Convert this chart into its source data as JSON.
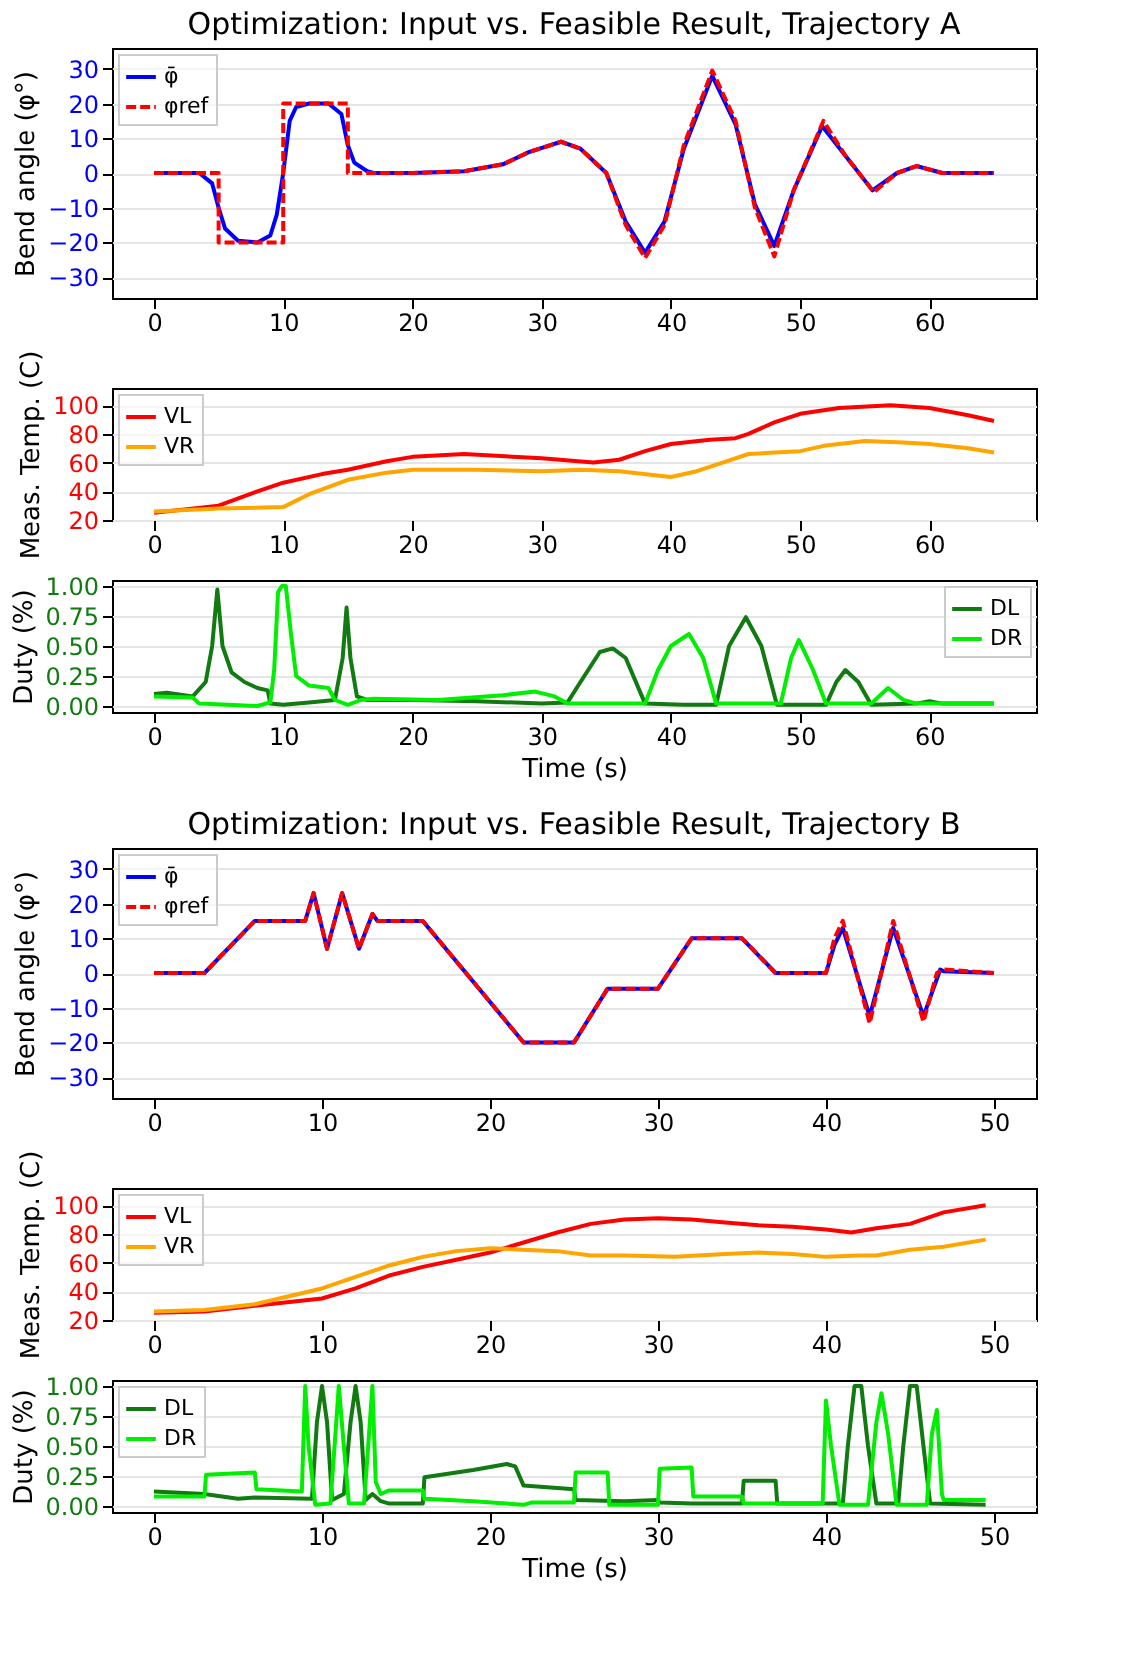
{
  "chart_data": [
    {
      "type": "line",
      "title": "Optimization: Input vs. Feasible Result, Trajectory A",
      "ylabel": "Bend angle (φ°)",
      "xlim": [
        -3.25,
        68.25
      ],
      "xticks": [
        0,
        10,
        20,
        30,
        40,
        50,
        60
      ],
      "ylim": [
        -36,
        36
      ],
      "yticks": [
        -30,
        -20,
        -10,
        0,
        10,
        20,
        30
      ],
      "grid": "y",
      "legend": "top left",
      "series": [
        {
          "name": "φ̄",
          "color": "#0000ff",
          "line_style": "solid",
          "x": [
            0,
            3.5,
            4.5,
            5,
            5.5,
            6.5,
            8,
            9,
            9.5,
            10,
            10.5,
            11,
            12,
            13.5,
            14.5,
            15,
            15.5,
            16.5,
            17,
            20,
            24,
            27,
            29,
            31.5,
            33,
            35,
            36.5,
            38,
            39.5,
            41,
            43.2,
            45,
            46.5,
            48,
            49.5,
            51.7,
            53.5,
            55.6,
            57.5,
            59,
            61,
            65
          ],
          "values": [
            0,
            0,
            -3,
            -10,
            -16,
            -19.5,
            -20,
            -18,
            -12,
            0,
            15,
            19,
            20,
            20,
            17,
            8,
            3,
            0.5,
            0,
            0,
            0.5,
            2.5,
            6,
            9,
            7,
            0,
            -14,
            -23,
            -14,
            7,
            28,
            14,
            -9,
            -21,
            -5,
            13.5,
            5,
            -5,
            0,
            2,
            0,
            0
          ]
        },
        {
          "name": "φref",
          "color": "#ff0000",
          "line_style": "dashed",
          "x": [
            0,
            5,
            5,
            10,
            10,
            15,
            15,
            20,
            24,
            27,
            29,
            31.5,
            33,
            35,
            36.5,
            38,
            39.5,
            41,
            43.2,
            45,
            46.5,
            48,
            49.5,
            51.8,
            53.5,
            55.7,
            57.5,
            59,
            61,
            65
          ],
          "values": [
            0,
            0,
            -20,
            -20,
            20,
            20,
            0,
            0,
            0.5,
            2.5,
            6,
            9,
            7,
            0,
            -15,
            -24.5,
            -15,
            8,
            29.5,
            15,
            -10,
            -24,
            -5,
            15,
            5,
            -5.5,
            0,
            2,
            0,
            0
          ]
        }
      ]
    },
    {
      "type": "line",
      "ylabel": "Meas. Temp. (C)",
      "xlim": [
        -3.25,
        68.25
      ],
      "xticks": [
        0,
        10,
        20,
        30,
        40,
        50,
        60
      ],
      "ylim": [
        20,
        112
      ],
      "yticks": [
        20,
        40,
        60,
        80,
        100
      ],
      "grid": "y",
      "legend": "top left",
      "series": [
        {
          "name": "VL",
          "color": "#ff0000",
          "line_style": "solid",
          "x": [
            0,
            5,
            8,
            10,
            13,
            15,
            18,
            20,
            24,
            30,
            34,
            36,
            38,
            40,
            43,
            45,
            46,
            48,
            50,
            53,
            57,
            60,
            63,
            65
          ],
          "values": [
            25,
            30,
            40,
            46,
            52,
            55,
            61,
            64,
            66,
            63,
            60,
            62,
            68,
            73,
            76,
            77,
            80,
            88,
            94,
            98,
            100,
            98,
            93,
            89
          ]
        },
        {
          "name": "VR",
          "color": "#ffa500",
          "line_style": "solid",
          "x": [
            0,
            5,
            10,
            12,
            15,
            18,
            20,
            25,
            30,
            33,
            36,
            40,
            42,
            44,
            46,
            48,
            50,
            52,
            55,
            58,
            60,
            63,
            65
          ],
          "values": [
            26,
            28,
            29,
            38,
            48,
            53,
            55,
            55,
            54,
            55,
            54,
            50,
            54,
            60,
            66,
            67,
            68,
            72,
            75,
            74,
            73,
            70,
            67
          ]
        }
      ]
    },
    {
      "type": "line",
      "ylabel": "Duty (%)",
      "xlabel": "Time (s)",
      "xlim": [
        -3.25,
        68.25
      ],
      "xticks": [
        0,
        10,
        20,
        30,
        40,
        50,
        60
      ],
      "ylim": [
        -0.05,
        1.05
      ],
      "yticks": [
        {
          "value": 0,
          "label": "0.00"
        },
        0.25,
        {
          "value": 0.5,
          "label": "0.50"
        },
        0.75,
        {
          "value": 1,
          "label": "1.00"
        }
      ],
      "grid": "y",
      "legend": "top right",
      "series": [
        {
          "name": "DL",
          "color": "#117a11",
          "line_style": "solid",
          "x": [
            0,
            1,
            3,
            4,
            4.5,
            4.9,
            5.3,
            6,
            7,
            8,
            8.8,
            9,
            10,
            12,
            14,
            14.6,
            14.9,
            15.2,
            15.7,
            16.5,
            20,
            25,
            30,
            32,
            33,
            34.5,
            35.5,
            36.5,
            38,
            41,
            43.5,
            44.5,
            45.8,
            47,
            48.2,
            52,
            52.8,
            53.5,
            54.5,
            55.5,
            59,
            60,
            61,
            65
          ],
          "values": [
            0.1,
            0.11,
            0.08,
            0.2,
            0.5,
            0.97,
            0.5,
            0.28,
            0.2,
            0.15,
            0.13,
            0.02,
            0.01,
            0.03,
            0.05,
            0.4,
            0.82,
            0.4,
            0.08,
            0.05,
            0.05,
            0.04,
            0.02,
            0.03,
            0.2,
            0.45,
            0.48,
            0.4,
            0.02,
            0.01,
            0.01,
            0.5,
            0.74,
            0.5,
            0.01,
            0.01,
            0.2,
            0.3,
            0.2,
            0.01,
            0.02,
            0.04,
            0.02,
            0.02
          ]
        },
        {
          "name": "DR",
          "color": "#00ee00",
          "line_style": "solid",
          "x": [
            0,
            3,
            3.5,
            8,
            9,
            9.3,
            9.6,
            9.9,
            10.2,
            10.6,
            11,
            12,
            13.5,
            14,
            15,
            16,
            17,
            22,
            27,
            29.5,
            31,
            32,
            38,
            39,
            40,
            41.4,
            42.5,
            43.5,
            48.5,
            49.3,
            49.9,
            51,
            52,
            55.5,
            56.8,
            58,
            59,
            65
          ],
          "values": [
            0.08,
            0.07,
            0.02,
            0,
            0.03,
            0.3,
            0.95,
            1,
            1,
            0.6,
            0.25,
            0.17,
            0.15,
            0.05,
            0.01,
            0.05,
            0.06,
            0.05,
            0.09,
            0.12,
            0.08,
            0.02,
            0.02,
            0.3,
            0.5,
            0.6,
            0.4,
            0.02,
            0.02,
            0.4,
            0.55,
            0.3,
            0.02,
            0.02,
            0.15,
            0.05,
            0.02,
            0.02
          ]
        }
      ]
    },
    {
      "type": "line",
      "title": "Optimization: Input vs. Feasible Result, Trajectory B",
      "ylabel": "Bend angle (φ°)",
      "xlim": [
        -2.5,
        52.5
      ],
      "xticks": [
        0,
        10,
        20,
        30,
        40,
        50
      ],
      "ylim": [
        -36,
        36
      ],
      "yticks": [
        -30,
        -20,
        -10,
        0,
        10,
        20,
        30
      ],
      "grid": "y",
      "legend": "top left",
      "series": [
        {
          "name": "φ̄",
          "color": "#0000ff",
          "line_style": "solid",
          "x": [
            0,
            3,
            6,
            9,
            9.5,
            10.3,
            11.2,
            12.2,
            13,
            13.3,
            16,
            22,
            25,
            27,
            30,
            32,
            35,
            37,
            40,
            40.5,
            41,
            42.6,
            44,
            45.8,
            46.8,
            47,
            50
          ],
          "values": [
            0,
            0,
            15,
            15,
            23,
            7,
            23,
            7,
            17,
            15,
            15,
            -20,
            -20,
            -4.5,
            -4.5,
            10,
            10,
            0,
            0,
            8,
            13,
            -12.5,
            13,
            -12.5,
            1,
            0.5,
            0
          ]
        },
        {
          "name": "φref",
          "color": "#ff0000",
          "line_style": "dashed",
          "x": [
            0,
            3,
            6,
            9,
            9.5,
            10.3,
            11.2,
            12.2,
            13,
            13.3,
            16,
            22,
            25,
            27,
            30,
            32,
            35,
            37,
            40,
            40.5,
            41,
            42.6,
            44,
            45.8,
            46.6,
            47,
            50
          ],
          "values": [
            0,
            0,
            15,
            15,
            23,
            7,
            23,
            7,
            17,
            15,
            15,
            -20,
            -20,
            -4.5,
            -4.5,
            10,
            10,
            0,
            0,
            10,
            15,
            -14.5,
            15,
            -14,
            0,
            1,
            0
          ]
        }
      ]
    },
    {
      "type": "line",
      "ylabel": "Meas. Temp. (C)",
      "xlim": [
        -2.5,
        52.5
      ],
      "xticks": [
        0,
        10,
        20,
        30,
        40,
        50
      ],
      "ylim": [
        20,
        112
      ],
      "yticks": [
        20,
        40,
        60,
        80,
        100
      ],
      "grid": "y",
      "legend": "top left",
      "series": [
        {
          "name": "VL",
          "color": "#ff0000",
          "line_style": "solid",
          "x": [
            0,
            3,
            6,
            10,
            12,
            14,
            16,
            18,
            20,
            22,
            24,
            26,
            28,
            30,
            32,
            34,
            36,
            38,
            40,
            41.5,
            43,
            45,
            47,
            49.5
          ],
          "values": [
            25,
            26,
            30,
            35,
            42,
            51,
            57,
            62,
            67,
            74,
            81,
            87,
            90,
            91,
            90,
            88,
            86,
            85,
            83,
            81,
            84,
            87,
            95,
            100
          ]
        },
        {
          "name": "VR",
          "color": "#ffa500",
          "line_style": "solid",
          "x": [
            0,
            3,
            6,
            10,
            12,
            14,
            16,
            18,
            20,
            22,
            24,
            26,
            28,
            31,
            34,
            36,
            38,
            40,
            42,
            43,
            45,
            47,
            49.5
          ],
          "values": [
            26,
            27,
            31,
            42,
            50,
            58,
            64,
            68,
            70,
            69,
            68,
            65,
            65,
            64,
            66,
            67,
            66,
            64,
            65,
            65,
            69,
            71,
            76
          ]
        }
      ]
    },
    {
      "type": "line",
      "ylabel": "Duty (%)",
      "xlabel": "Time (s)",
      "xlim": [
        -2.5,
        52.5
      ],
      "xticks": [
        0,
        10,
        20,
        30,
        40,
        50
      ],
      "ylim": [
        -0.05,
        1.05
      ],
      "yticks": [
        {
          "value": 0,
          "label": "0.00"
        },
        0.25,
        {
          "value": 0.5,
          "label": "0.50"
        },
        0.75,
        {
          "value": 1,
          "label": "1.00"
        }
      ],
      "grid": "y",
      "legend": "top left",
      "series": [
        {
          "name": "DL",
          "color": "#117a11",
          "line_style": "solid",
          "x": [
            0,
            3,
            5,
            6,
            9.4,
            9.7,
            10,
            10.3,
            10.6,
            11.3,
            11.7,
            12,
            12.3,
            12.6,
            13,
            13.5,
            14,
            16,
            16.1,
            19,
            21,
            21.5,
            22,
            25,
            25.1,
            28,
            30,
            30.1,
            32,
            35,
            35.1,
            37,
            37.1,
            41,
            41.3,
            41.7,
            42.1,
            42.5,
            43,
            44.3,
            44.6,
            45,
            45.4,
            45.8,
            46.2,
            49.5
          ],
          "values": [
            0.12,
            0.1,
            0.06,
            0.07,
            0.06,
            0.7,
            1,
            0.7,
            0.05,
            0.1,
            0.7,
            1,
            0.7,
            0.05,
            0.1,
            0.04,
            0.02,
            0.02,
            0.24,
            0.3,
            0.35,
            0.33,
            0.17,
            0.14,
            0.05,
            0.04,
            0.05,
            0.03,
            0.02,
            0.02,
            0.21,
            0.21,
            0.02,
            0.02,
            0.5,
            1,
            1,
            0.5,
            0.02,
            0.02,
            0.5,
            1,
            1,
            0.5,
            0.02,
            0.01
          ]
        },
        {
          "name": "DR",
          "color": "#00ee00",
          "line_style": "solid",
          "x": [
            0,
            3,
            3.1,
            6,
            6.1,
            8.8,
            9,
            9.2,
            9.6,
            10.5,
            10.8,
            11,
            11.3,
            11.6,
            12.5,
            12.8,
            13,
            13.2,
            13.5,
            14,
            16,
            16.1,
            19,
            22,
            22.5,
            25,
            25.1,
            27,
            27.1,
            30,
            30.1,
            32,
            32.1,
            35,
            35.1,
            39.8,
            40,
            40.3,
            40.8,
            42.5,
            43,
            43.3,
            43.7,
            44.2,
            46,
            46.3,
            46.6,
            46.9,
            47,
            49.5
          ],
          "values": [
            0.08,
            0.08,
            0.26,
            0.28,
            0.14,
            0.12,
            1,
            0.5,
            0.01,
            0.02,
            0.6,
            1,
            0.5,
            0.02,
            0.02,
            0.6,
            1,
            0.2,
            0.1,
            0.13,
            0.13,
            0.06,
            0.04,
            0.01,
            0.03,
            0.03,
            0.28,
            0.28,
            0.01,
            0.01,
            0.31,
            0.32,
            0.08,
            0.08,
            0.02,
            0.02,
            0.88,
            0.5,
            0.01,
            0.01,
            0.7,
            0.94,
            0.6,
            0.01,
            0.01,
            0.6,
            0.8,
            0.1,
            0.05,
            0.05
          ]
        }
      ]
    }
  ]
}
